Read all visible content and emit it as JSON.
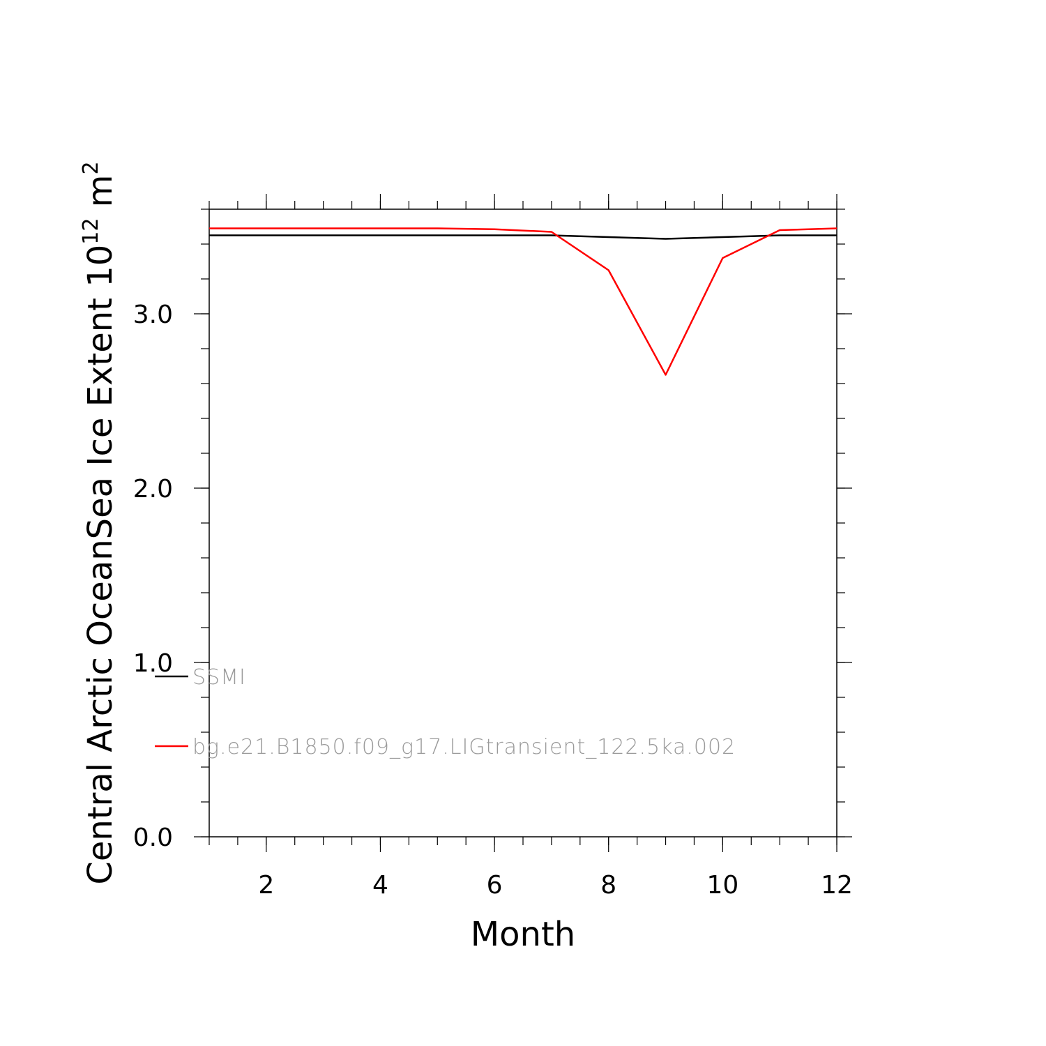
{
  "chart_data": {
    "type": "line",
    "title": "",
    "xlabel": "Month",
    "ylabel": {
      "prefix": "Central Arctic OceanSea Ice Extent 10",
      "exponent": "12",
      "unit": "m",
      "unit_exponent": "2"
    },
    "xlim": [
      1,
      12
    ],
    "ylim": [
      0,
      3.6
    ],
    "x_ticks": [
      2,
      4,
      6,
      8,
      10,
      12
    ],
    "x_tick_labels": [
      "2",
      "4",
      "6",
      "8",
      "10",
      "12"
    ],
    "y_ticks": [
      0,
      1,
      2,
      3
    ],
    "y_tick_labels": [
      "0.0",
      "1.0",
      "2.0",
      "3.0"
    ],
    "grid": false,
    "legend_placement": "bottom-left inside plot",
    "x": [
      1,
      2,
      3,
      4,
      5,
      6,
      7,
      8,
      9,
      10,
      11,
      12
    ],
    "series": [
      {
        "name": "SSMI",
        "color": "#000000",
        "values": [
          3.45,
          3.45,
          3.45,
          3.45,
          3.45,
          3.45,
          3.45,
          3.44,
          3.43,
          3.44,
          3.45,
          3.45
        ]
      },
      {
        "name": "bg.e21.B1850.f09_g17.LIGtransient_122.5ka.002",
        "color": "#ff0000",
        "values": [
          3.49,
          3.49,
          3.49,
          3.49,
          3.49,
          3.485,
          3.47,
          3.25,
          2.65,
          3.32,
          3.48,
          3.49
        ]
      }
    ]
  }
}
